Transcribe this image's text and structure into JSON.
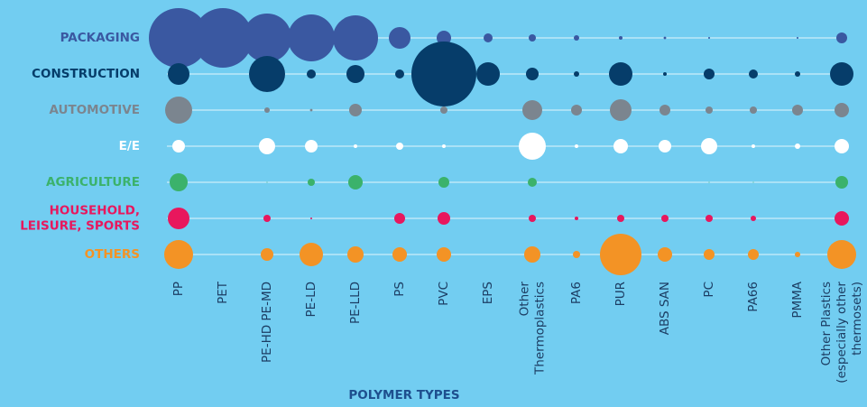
{
  "chart_data": {
    "type": "bubble-matrix",
    "x_label": "POLYMER TYPES",
    "categories": [
      [
        "PP"
      ],
      [
        "PET"
      ],
      [
        "PE-HD PE-MD"
      ],
      [
        "PE-LD"
      ],
      [
        "PE-LLD"
      ],
      [
        "PS"
      ],
      [
        "PVC"
      ],
      [
        "EPS"
      ],
      [
        "Other",
        "Thermoplastics"
      ],
      [
        "PA6"
      ],
      [
        "PUR"
      ],
      [
        "ABS SAN"
      ],
      [
        "PC"
      ],
      [
        "PA66"
      ],
      [
        "PMMA"
      ],
      [
        "Other Plastics",
        "(especially other",
        "thermosets)"
      ]
    ],
    "series": [
      {
        "name": [
          "PACKAGING"
        ],
        "color": "#3a58a1",
        "values": [
          1089,
          1089,
          729,
          676,
          625,
          144,
          64,
          25,
          16,
          9,
          4,
          2,
          1,
          0,
          1,
          36
        ]
      },
      {
        "name": [
          "CONSTRUCTION"
        ],
        "color": "#063d6a",
        "values": [
          144,
          0,
          400,
          25,
          100,
          25,
          1296,
          169,
          49,
          9,
          169,
          4,
          36,
          25,
          9,
          169
        ]
      },
      {
        "name": [
          "AUTOMOTIVE"
        ],
        "color": "#7b858f",
        "values": [
          225,
          0,
          9,
          2,
          49,
          0,
          16,
          0,
          121,
          36,
          144,
          36,
          16,
          16,
          36,
          64
        ]
      },
      {
        "name": [
          "E/E"
        ],
        "color": "#ffffff",
        "values": [
          49,
          0,
          81,
          49,
          4,
          16,
          4,
          0,
          225,
          4,
          64,
          49,
          81,
          4,
          9,
          64
        ]
      },
      {
        "name": [
          "AGRICULTURE"
        ],
        "color": "#3bb26b",
        "values": [
          100,
          0,
          0.25,
          16,
          64,
          0,
          36,
          0,
          25,
          0,
          0,
          0,
          0.25,
          0.25,
          0,
          49
        ]
      },
      {
        "name": [
          "HOUSEHOLD,",
          "LEISURE, SPORTS"
        ],
        "color": "#e8175d",
        "values": [
          144,
          0,
          16,
          1,
          0,
          36,
          49,
          0,
          16,
          4,
          16,
          16,
          16,
          9,
          0,
          64
        ]
      },
      {
        "name": [
          "OTHERS"
        ],
        "color": "#f39325",
        "values": [
          256,
          0,
          49,
          169,
          81,
          64,
          64,
          0,
          81,
          16,
          529,
          64,
          36,
          36,
          9,
          256
        ]
      }
    ]
  }
}
